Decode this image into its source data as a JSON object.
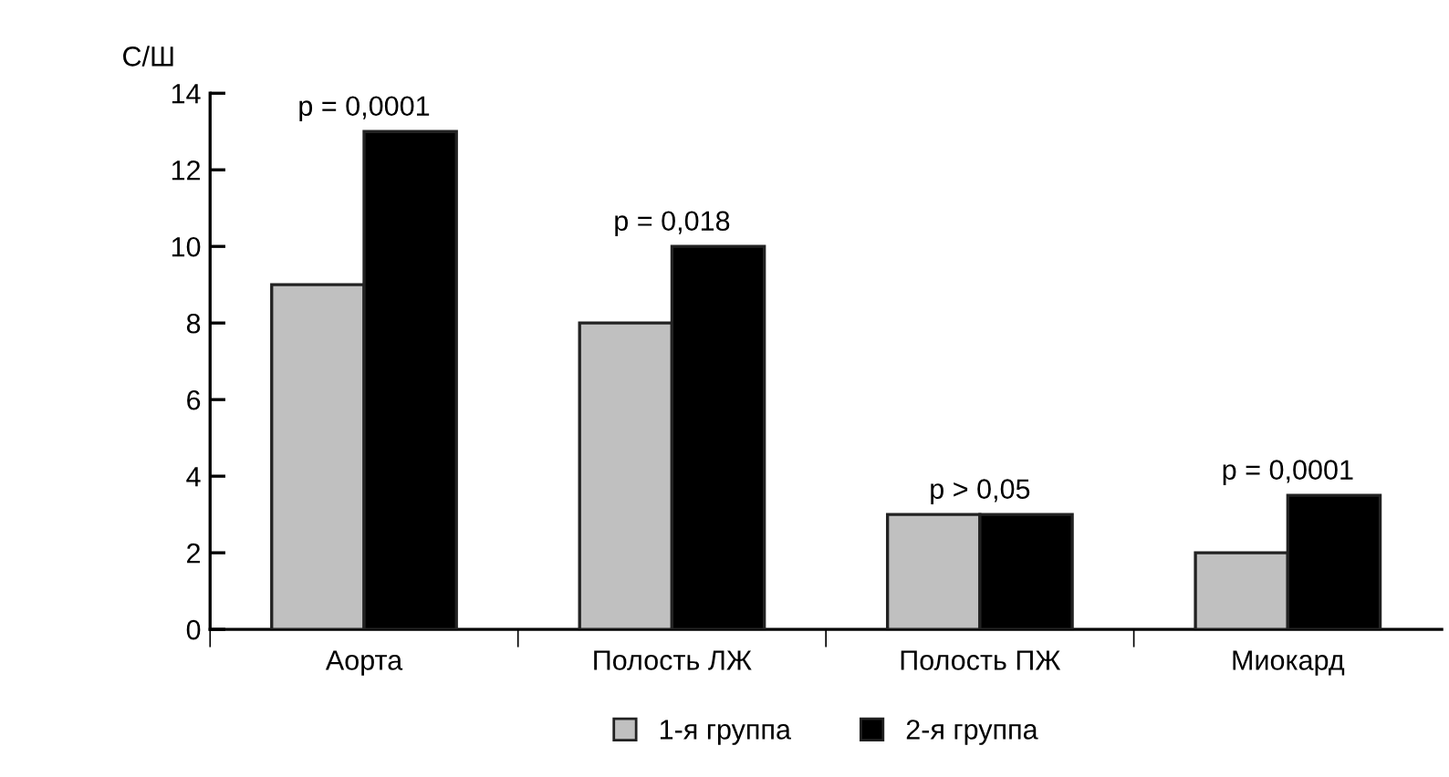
{
  "chart_data": {
    "type": "bar",
    "ylabel": "С/Ш",
    "categories": [
      "Аорта",
      "Полость ЛЖ",
      "Полость ПЖ",
      "Миокард"
    ],
    "series": [
      {
        "name": "1-я группа",
        "color": "#c0c0c0",
        "values": [
          9,
          8,
          3,
          2
        ]
      },
      {
        "name": "2-я группа",
        "color": "#000000",
        "values": [
          13,
          10,
          3,
          3.5
        ]
      }
    ],
    "ylim": [
      0,
      14
    ],
    "yticks": [
      0,
      2,
      4,
      6,
      8,
      10,
      12,
      14
    ],
    "grid": false,
    "legend": "bottom",
    "annotations": [
      {
        "text": "p = 0,0001",
        "x": "Аорта",
        "y": 13
      },
      {
        "text": "p = 0,018",
        "x": "Полость ЛЖ",
        "y": 10
      },
      {
        "text": "p > 0,05",
        "x": "Полость ПЖ",
        "y": 3
      },
      {
        "text": "p = 0,0001",
        "x": "Миокард",
        "y": 3.5
      }
    ]
  }
}
